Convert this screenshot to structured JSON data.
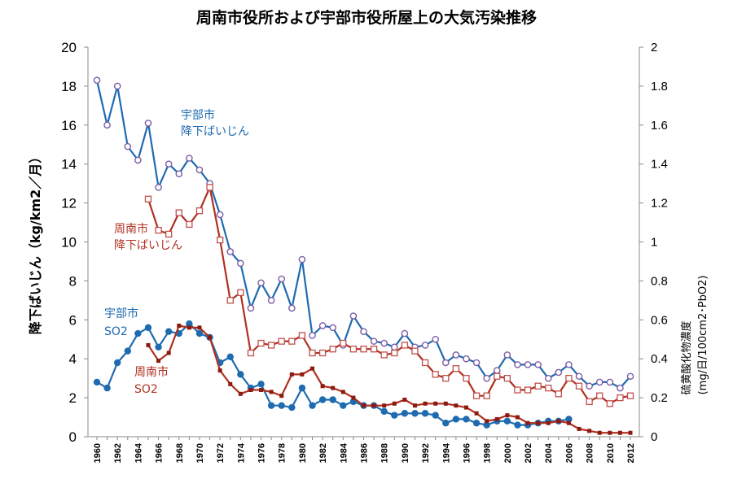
{
  "chart_data": {
    "type": "line",
    "title": "周南市役所および宇部市役所屋上の大気汚染推移",
    "ylabel": "降下ばいじん（kg/km2／月）",
    "y2label": "硫黄酸化物濃度",
    "y2label_unit": "(mg/日/100cm2･PbO2)",
    "ylim": [
      0,
      20
    ],
    "y2lim": [
      0,
      2
    ],
    "yticks": [
      "0",
      "2",
      "4",
      "6",
      "8",
      "10",
      "12",
      "14",
      "16",
      "18",
      "20"
    ],
    "y2ticks": [
      "0",
      "0.2",
      "0.4",
      "0.6",
      "0.8",
      "1",
      "1.2",
      "1.4",
      "1.6",
      "1.8",
      "2"
    ],
    "xlim": [
      1960,
      2012
    ],
    "xticks": [
      "1960",
      "1962",
      "1964",
      "1966",
      "1968",
      "1970",
      "1972",
      "1974",
      "1976",
      "1978",
      "1980",
      "1982",
      "1984",
      "1986",
      "1988",
      "1990",
      "1992",
      "1994",
      "1996",
      "1998",
      "2000",
      "2002",
      "2004",
      "2006",
      "2008",
      "2010",
      "2012"
    ],
    "grid": false,
    "series": [
      {
        "name": "宇部市 降下ばいじん",
        "axis": "left",
        "color": "#1f6bb0",
        "marker": "open-circle",
        "marker_color": "#7b5ea6",
        "x": [
          1960,
          1961,
          1962,
          1963,
          1964,
          1965,
          1966,
          1967,
          1968,
          1969,
          1970,
          1971,
          1972,
          1973,
          1974,
          1975,
          1976,
          1977,
          1978,
          1979,
          1980,
          1981,
          1982,
          1983,
          1984,
          1985,
          1986,
          1987,
          1988,
          1989,
          1990,
          1991,
          1992,
          1993,
          1994,
          1995,
          1996,
          1997,
          1998,
          1999,
          2000,
          2001,
          2002,
          2003,
          2004,
          2005,
          2006,
          2007,
          2008,
          2009,
          2010,
          2011,
          2012
        ],
        "values": [
          18.3,
          16.0,
          18.0,
          14.9,
          14.2,
          16.1,
          12.8,
          14.0,
          13.5,
          14.3,
          13.7,
          13.0,
          11.4,
          9.5,
          8.9,
          6.6,
          7.9,
          7.0,
          8.1,
          6.6,
          9.1,
          5.2,
          5.7,
          5.6,
          4.7,
          6.2,
          5.4,
          4.9,
          4.8,
          4.6,
          5.3,
          4.6,
          4.7,
          5.0,
          3.8,
          4.2,
          4.0,
          3.8,
          3.0,
          3.4,
          4.2,
          3.7,
          3.7,
          3.7,
          3.0,
          3.3,
          3.7,
          3.1,
          2.6,
          2.8,
          2.8,
          2.5,
          3.1
        ]
      },
      {
        "name": "周南市 降下ばいじん",
        "axis": "left",
        "color": "#b03020",
        "marker": "open-square",
        "marker_color": "#c0504d",
        "x": [
          1965,
          1966,
          1967,
          1968,
          1969,
          1970,
          1971,
          1972,
          1973,
          1974,
          1975,
          1976,
          1977,
          1978,
          1979,
          1980,
          1981,
          1982,
          1983,
          1984,
          1985,
          1986,
          1987,
          1988,
          1989,
          1990,
          1991,
          1992,
          1993,
          1994,
          1995,
          1996,
          1997,
          1998,
          1999,
          2000,
          2001,
          2002,
          2003,
          2004,
          2005,
          2006,
          2007,
          2008,
          2009,
          2010,
          2011,
          2012
        ],
        "values": [
          12.2,
          10.6,
          10.4,
          11.5,
          10.9,
          11.6,
          12.8,
          10.1,
          7.0,
          7.4,
          4.3,
          4.8,
          4.7,
          4.9,
          4.9,
          5.2,
          4.3,
          4.3,
          4.5,
          4.8,
          4.5,
          4.5,
          4.5,
          4.2,
          4.3,
          4.7,
          4.4,
          3.8,
          3.2,
          3.0,
          3.5,
          3.0,
          2.1,
          2.1,
          3.1,
          3.0,
          2.4,
          2.4,
          2.6,
          2.5,
          2.2,
          3.0,
          2.6,
          1.8,
          2.1,
          1.7,
          2.0,
          2.1
        ]
      },
      {
        "name": "宇部市 SO2",
        "axis": "right",
        "color": "#1f6bb0",
        "marker": "filled-circle",
        "marker_color": "#1f6bb0",
        "x": [
          1960,
          1961,
          1962,
          1963,
          1964,
          1965,
          1966,
          1967,
          1968,
          1969,
          1970,
          1971,
          1972,
          1973,
          1974,
          1975,
          1976,
          1977,
          1978,
          1979,
          1980,
          1981,
          1982,
          1983,
          1984,
          1985,
          1986,
          1987,
          1988,
          1989,
          1990,
          1991,
          1992,
          1993,
          1994,
          1995,
          1996,
          1997,
          1998,
          1999,
          2000,
          2001,
          2002,
          2003,
          2004,
          2005,
          2006
        ],
        "values": [
          0.28,
          0.25,
          0.38,
          0.44,
          0.53,
          0.56,
          0.46,
          0.54,
          0.53,
          0.58,
          0.53,
          0.51,
          0.38,
          0.41,
          0.32,
          0.25,
          0.27,
          0.16,
          0.16,
          0.15,
          0.25,
          0.16,
          0.19,
          0.19,
          0.16,
          0.18,
          0.16,
          0.16,
          0.13,
          0.11,
          0.12,
          0.12,
          0.12,
          0.11,
          0.07,
          0.09,
          0.09,
          0.07,
          0.06,
          0.08,
          0.08,
          0.06,
          0.06,
          0.07,
          0.08,
          0.08,
          0.09
        ]
      },
      {
        "name": "周南市 SO2",
        "axis": "right",
        "color": "#b03020",
        "marker": "filled-square",
        "marker_color": "#8b1a10",
        "x": [
          1965,
          1966,
          1967,
          1968,
          1969,
          1970,
          1971,
          1972,
          1973,
          1974,
          1975,
          1976,
          1977,
          1978,
          1979,
          1980,
          1981,
          1982,
          1983,
          1984,
          1985,
          1986,
          1987,
          1988,
          1989,
          1990,
          1991,
          1992,
          1993,
          1994,
          1995,
          1996,
          1997,
          1998,
          1999,
          2000,
          2001,
          2002,
          2003,
          2004,
          2005,
          2006,
          2007,
          2008,
          2009,
          2010,
          2011,
          2012
        ],
        "values": [
          0.47,
          0.39,
          0.43,
          0.57,
          0.56,
          0.56,
          0.51,
          0.34,
          0.27,
          0.22,
          0.24,
          0.24,
          0.23,
          0.21,
          0.32,
          0.32,
          0.35,
          0.26,
          0.25,
          0.23,
          0.2,
          0.16,
          0.16,
          0.16,
          0.17,
          0.19,
          0.16,
          0.17,
          0.17,
          0.17,
          0.16,
          0.15,
          0.12,
          0.08,
          0.09,
          0.11,
          0.1,
          0.07,
          0.07,
          0.07,
          0.08,
          0.07,
          0.04,
          0.03,
          0.02,
          0.02,
          0.02,
          0.02
        ]
      }
    ],
    "annotations": [
      {
        "lines": [
          "宇部市",
          "降下ばいじん"
        ],
        "color": "#1f6bb0"
      },
      {
        "lines": [
          "周南市",
          "降下ばいじん"
        ],
        "color": "#b03020"
      },
      {
        "lines": [
          "宇部市",
          "SO2"
        ],
        "color": "#1f6bb0"
      },
      {
        "lines": [
          "周南市",
          "SO2"
        ],
        "color": "#b03020"
      }
    ]
  }
}
